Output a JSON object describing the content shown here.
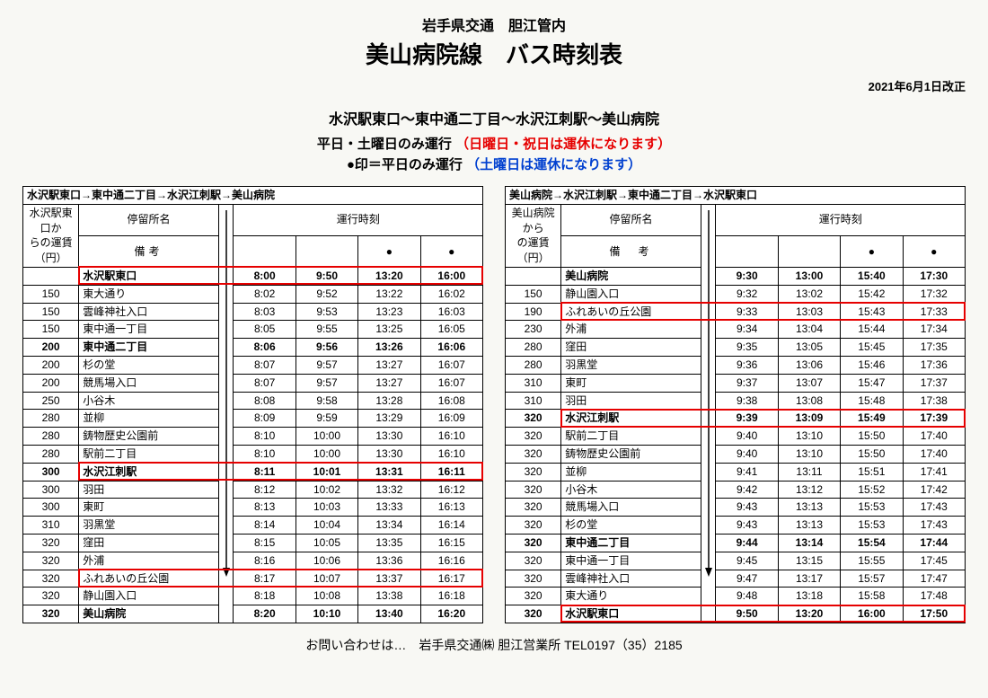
{
  "header": {
    "line1": "岩手県交通　胆江管内",
    "line2": "美山病院線　バス時刻表",
    "revision": "2021年6月1日改正",
    "route": "水沢駅東口〜東中通二丁目〜水沢江刺駅〜美山病院",
    "notice1_black": "平日・土曜日のみ運行",
    "notice1_red": "（日曜日・祝日は運休になります）",
    "notice2_black": "●印＝平日のみ運行",
    "notice2_blue": "（土曜日は運休になります）"
  },
  "left": {
    "title": "水沢駅東口→東中通二丁目→水沢江刺駅→美山病院",
    "stop_header": "停留所名",
    "time_header": "運行時刻",
    "remark_header": "備考",
    "fare_header": "水沢駅東口からの運賃（円）",
    "col_marks": [
      "",
      "",
      "●",
      "●"
    ],
    "rows": [
      {
        "fare": "",
        "stop": "水沢駅東口",
        "times": [
          "8:00",
          "9:50",
          "13:20",
          "16:00"
        ],
        "bold": true,
        "hl": true
      },
      {
        "fare": "150",
        "stop": "東大通り",
        "times": [
          "8:02",
          "9:52",
          "13:22",
          "16:02"
        ]
      },
      {
        "fare": "150",
        "stop": "雲峰神社入口",
        "times": [
          "8:03",
          "9:53",
          "13:23",
          "16:03"
        ]
      },
      {
        "fare": "150",
        "stop": "東中通一丁目",
        "times": [
          "8:05",
          "9:55",
          "13:25",
          "16:05"
        ]
      },
      {
        "fare": "200",
        "stop": "東中通二丁目",
        "times": [
          "8:06",
          "9:56",
          "13:26",
          "16:06"
        ],
        "bold": true
      },
      {
        "fare": "200",
        "stop": "杉の堂",
        "times": [
          "8:07",
          "9:57",
          "13:27",
          "16:07"
        ]
      },
      {
        "fare": "200",
        "stop": "競馬場入口",
        "times": [
          "8:07",
          "9:57",
          "13:27",
          "16:07"
        ]
      },
      {
        "fare": "250",
        "stop": "小谷木",
        "times": [
          "8:08",
          "9:58",
          "13:28",
          "16:08"
        ]
      },
      {
        "fare": "280",
        "stop": "並柳",
        "times": [
          "8:09",
          "9:59",
          "13:29",
          "16:09"
        ]
      },
      {
        "fare": "280",
        "stop": "鋳物歴史公園前",
        "times": [
          "8:10",
          "10:00",
          "13:30",
          "16:10"
        ]
      },
      {
        "fare": "280",
        "stop": "駅前二丁目",
        "times": [
          "8:10",
          "10:00",
          "13:30",
          "16:10"
        ]
      },
      {
        "fare": "300",
        "stop": "水沢江刺駅",
        "times": [
          "8:11",
          "10:01",
          "13:31",
          "16:11"
        ],
        "bold": true,
        "hl": true
      },
      {
        "fare": "300",
        "stop": "羽田",
        "times": [
          "8:12",
          "10:02",
          "13:32",
          "16:12"
        ]
      },
      {
        "fare": "300",
        "stop": "東町",
        "times": [
          "8:13",
          "10:03",
          "13:33",
          "16:13"
        ]
      },
      {
        "fare": "310",
        "stop": "羽黒堂",
        "times": [
          "8:14",
          "10:04",
          "13:34",
          "16:14"
        ]
      },
      {
        "fare": "320",
        "stop": "窪田",
        "times": [
          "8:15",
          "10:05",
          "13:35",
          "16:15"
        ]
      },
      {
        "fare": "320",
        "stop": "外浦",
        "times": [
          "8:16",
          "10:06",
          "13:36",
          "16:16"
        ]
      },
      {
        "fare": "320",
        "stop": "ふれあいの丘公園",
        "times": [
          "8:17",
          "10:07",
          "13:37",
          "16:17"
        ],
        "hl": true
      },
      {
        "fare": "320",
        "stop": "静山園入口",
        "times": [
          "8:18",
          "10:08",
          "13:38",
          "16:18"
        ]
      },
      {
        "fare": "320",
        "stop": "美山病院",
        "times": [
          "8:20",
          "10:10",
          "13:40",
          "16:20"
        ],
        "bold": true
      }
    ]
  },
  "right": {
    "title": "美山病院→水沢江刺駅→東中通二丁目→水沢駅東口",
    "stop_header": "停留所名",
    "time_header": "運行時刻",
    "remark_header": "備　考",
    "fare_header": "美山病院からの運賃（円）",
    "col_marks": [
      "",
      "",
      "●",
      "●"
    ],
    "rows": [
      {
        "fare": "",
        "stop": "美山病院",
        "times": [
          "9:30",
          "13:00",
          "15:40",
          "17:30"
        ],
        "bold": true
      },
      {
        "fare": "150",
        "stop": "静山園入口",
        "times": [
          "9:32",
          "13:02",
          "15:42",
          "17:32"
        ]
      },
      {
        "fare": "190",
        "stop": "ふれあいの丘公園",
        "times": [
          "9:33",
          "13:03",
          "15:43",
          "17:33"
        ],
        "hl": true
      },
      {
        "fare": "230",
        "stop": "外浦",
        "times": [
          "9:34",
          "13:04",
          "15:44",
          "17:34"
        ]
      },
      {
        "fare": "280",
        "stop": "窪田",
        "times": [
          "9:35",
          "13:05",
          "15:45",
          "17:35"
        ]
      },
      {
        "fare": "280",
        "stop": "羽黒堂",
        "times": [
          "9:36",
          "13:06",
          "15:46",
          "17:36"
        ]
      },
      {
        "fare": "310",
        "stop": "東町",
        "times": [
          "9:37",
          "13:07",
          "15:47",
          "17:37"
        ]
      },
      {
        "fare": "310",
        "stop": "羽田",
        "times": [
          "9:38",
          "13:08",
          "15:48",
          "17:38"
        ]
      },
      {
        "fare": "320",
        "stop": "水沢江刺駅",
        "times": [
          "9:39",
          "13:09",
          "15:49",
          "17:39"
        ],
        "bold": true,
        "hl": true
      },
      {
        "fare": "320",
        "stop": "駅前二丁目",
        "times": [
          "9:40",
          "13:10",
          "15:50",
          "17:40"
        ]
      },
      {
        "fare": "320",
        "stop": "鋳物歴史公園前",
        "times": [
          "9:40",
          "13:10",
          "15:50",
          "17:40"
        ]
      },
      {
        "fare": "320",
        "stop": "並柳",
        "times": [
          "9:41",
          "13:11",
          "15:51",
          "17:41"
        ]
      },
      {
        "fare": "320",
        "stop": "小谷木",
        "times": [
          "9:42",
          "13:12",
          "15:52",
          "17:42"
        ]
      },
      {
        "fare": "320",
        "stop": "競馬場入口",
        "times": [
          "9:43",
          "13:13",
          "15:53",
          "17:43"
        ]
      },
      {
        "fare": "320",
        "stop": "杉の堂",
        "times": [
          "9:43",
          "13:13",
          "15:53",
          "17:43"
        ]
      },
      {
        "fare": "320",
        "stop": "東中通二丁目",
        "times": [
          "9:44",
          "13:14",
          "15:54",
          "17:44"
        ],
        "bold": true
      },
      {
        "fare": "320",
        "stop": "東中通一丁目",
        "times": [
          "9:45",
          "13:15",
          "15:55",
          "17:45"
        ]
      },
      {
        "fare": "320",
        "stop": "雲峰神社入口",
        "times": [
          "9:47",
          "13:17",
          "15:57",
          "17:47"
        ]
      },
      {
        "fare": "320",
        "stop": "東大通り",
        "times": [
          "9:48",
          "13:18",
          "15:58",
          "17:48"
        ]
      },
      {
        "fare": "320",
        "stop": "水沢駅東口",
        "times": [
          "9:50",
          "13:20",
          "16:00",
          "17:50"
        ],
        "bold": true,
        "hl": true
      }
    ]
  },
  "footer": "お問い合わせは…　岩手県交通㈱ 胆江営業所 TEL0197（35）2185"
}
